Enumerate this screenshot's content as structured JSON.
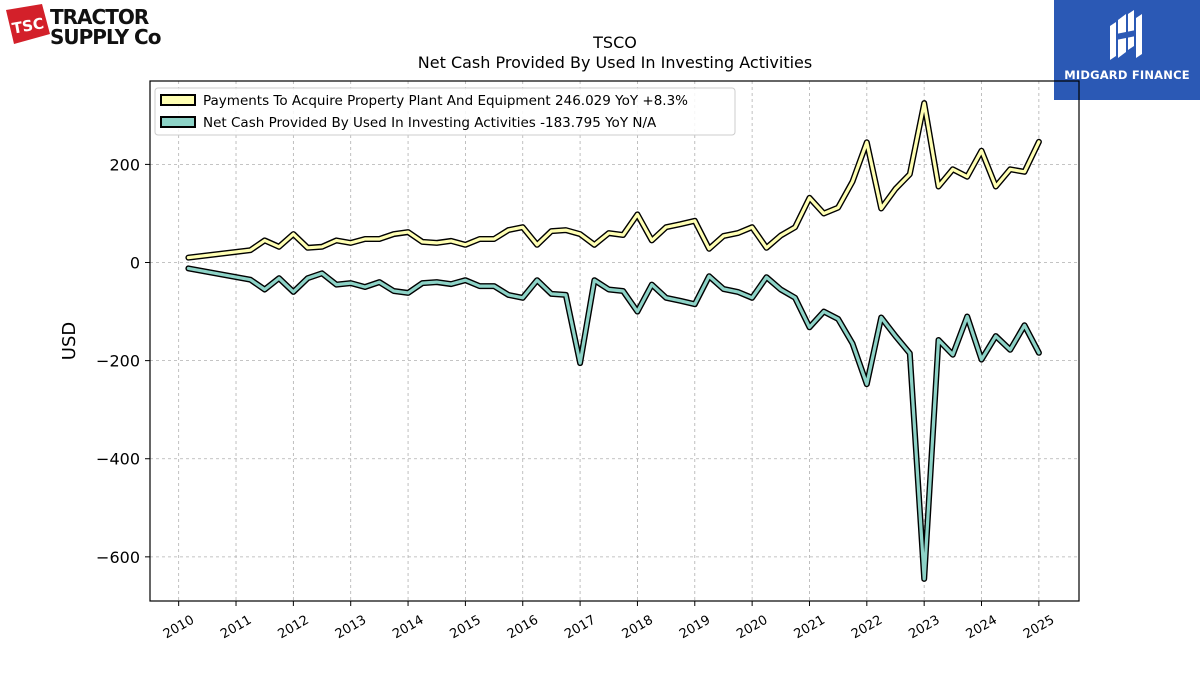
{
  "logos": {
    "left": {
      "line1": "TRACTOR",
      "line2": "SUPPLY Co",
      "mark": "TSC"
    },
    "right": {
      "brand": "MIDGARD FINANCE"
    }
  },
  "colors": {
    "series_capex": "#ffffb3",
    "series_investing": "#8dd3c7",
    "outline": "#000000",
    "grid": "#b0b0b0",
    "brand_blue": "#2b59b5",
    "tsc_red": "#d3202a"
  },
  "chart_data": {
    "type": "line",
    "title": "TSCO",
    "subtitle": "Net Cash Provided By Used In Investing Activities",
    "xlabel": "",
    "ylabel": "USD",
    "xlim": [
      2009.5,
      2025.7
    ],
    "ylim": [
      -690,
      370
    ],
    "yticks": [
      -600,
      -400,
      -200,
      0,
      200
    ],
    "ytick_labels": [
      "−600",
      "−400",
      "−200",
      "0",
      "200"
    ],
    "xticks": [
      2010,
      2011,
      2012,
      2013,
      2014,
      2015,
      2016,
      2017,
      2018,
      2019,
      2020,
      2021,
      2022,
      2023,
      2024,
      2025
    ],
    "xtick_labels": [
      "2010",
      "2011",
      "2012",
      "2013",
      "2014",
      "2015",
      "2016",
      "2017",
      "2018",
      "2019",
      "2020",
      "2021",
      "2022",
      "2023",
      "2024",
      "2025"
    ],
    "grid": true,
    "legend_position": "top-left",
    "series": [
      {
        "name": "Payments To Acquire Property Plant And Equipment",
        "legend_label": "Payments To Acquire Property Plant And Equipment  246.029 YoY +8.3%",
        "points": [
          [
            2010.17,
            10
          ],
          [
            2011.25,
            25
          ],
          [
            2011.5,
            45
          ],
          [
            2011.75,
            32
          ],
          [
            2012.0,
            58
          ],
          [
            2012.25,
            30
          ],
          [
            2012.5,
            32
          ],
          [
            2012.75,
            45
          ],
          [
            2013.0,
            40
          ],
          [
            2013.25,
            48
          ],
          [
            2013.5,
            48
          ],
          [
            2013.75,
            58
          ],
          [
            2014.0,
            62
          ],
          [
            2014.25,
            42
          ],
          [
            2014.5,
            40
          ],
          [
            2014.75,
            44
          ],
          [
            2015.0,
            36
          ],
          [
            2015.25,
            48
          ],
          [
            2015.5,
            48
          ],
          [
            2015.75,
            66
          ],
          [
            2016.0,
            72
          ],
          [
            2016.25,
            36
          ],
          [
            2016.5,
            64
          ],
          [
            2016.75,
            66
          ],
          [
            2017.0,
            58
          ],
          [
            2017.25,
            36
          ],
          [
            2017.5,
            60
          ],
          [
            2017.75,
            56
          ],
          [
            2018.0,
            98
          ],
          [
            2018.25,
            45
          ],
          [
            2018.5,
            72
          ],
          [
            2018.75,
            78
          ],
          [
            2019.0,
            85
          ],
          [
            2019.25,
            28
          ],
          [
            2019.5,
            54
          ],
          [
            2019.75,
            60
          ],
          [
            2020.0,
            72
          ],
          [
            2020.25,
            30
          ],
          [
            2020.5,
            55
          ],
          [
            2020.75,
            72
          ],
          [
            2021.0,
            132
          ],
          [
            2021.25,
            100
          ],
          [
            2021.5,
            112
          ],
          [
            2021.75,
            165
          ],
          [
            2022.0,
            245
          ],
          [
            2022.25,
            110
          ],
          [
            2022.5,
            150
          ],
          [
            2022.75,
            180
          ],
          [
            2023.0,
            325
          ],
          [
            2023.25,
            155
          ],
          [
            2023.5,
            190
          ],
          [
            2023.75,
            175
          ],
          [
            2024.0,
            228
          ],
          [
            2024.25,
            155
          ],
          [
            2024.5,
            190
          ],
          [
            2024.75,
            185
          ],
          [
            2025.0,
            246
          ]
        ]
      },
      {
        "name": "Net Cash Provided By Used In Investing Activities",
        "legend_label": "Net Cash Provided By Used In Investing Activities  -183.795 YoY N/A",
        "points": [
          [
            2010.17,
            -12
          ],
          [
            2011.25,
            -35
          ],
          [
            2011.5,
            -55
          ],
          [
            2011.75,
            -32
          ],
          [
            2012.0,
            -60
          ],
          [
            2012.25,
            -32
          ],
          [
            2012.5,
            -22
          ],
          [
            2012.75,
            -45
          ],
          [
            2013.0,
            -42
          ],
          [
            2013.25,
            -50
          ],
          [
            2013.5,
            -40
          ],
          [
            2013.75,
            -58
          ],
          [
            2014.0,
            -62
          ],
          [
            2014.25,
            -42
          ],
          [
            2014.5,
            -40
          ],
          [
            2014.75,
            -44
          ],
          [
            2015.0,
            -36
          ],
          [
            2015.25,
            -48
          ],
          [
            2015.5,
            -48
          ],
          [
            2015.75,
            -66
          ],
          [
            2016.0,
            -72
          ],
          [
            2016.25,
            -36
          ],
          [
            2016.5,
            -64
          ],
          [
            2016.75,
            -66
          ],
          [
            2017.0,
            -205
          ],
          [
            2017.25,
            -36
          ],
          [
            2017.5,
            -55
          ],
          [
            2017.75,
            -58
          ],
          [
            2018.0,
            -100
          ],
          [
            2018.25,
            -45
          ],
          [
            2018.5,
            -72
          ],
          [
            2018.75,
            -78
          ],
          [
            2019.0,
            -85
          ],
          [
            2019.25,
            -28
          ],
          [
            2019.5,
            -54
          ],
          [
            2019.75,
            -60
          ],
          [
            2020.0,
            -72
          ],
          [
            2020.25,
            -30
          ],
          [
            2020.5,
            -55
          ],
          [
            2020.75,
            -72
          ],
          [
            2021.0,
            -132
          ],
          [
            2021.25,
            -100
          ],
          [
            2021.5,
            -115
          ],
          [
            2021.75,
            -165
          ],
          [
            2022.0,
            -248
          ],
          [
            2022.25,
            -112
          ],
          [
            2022.5,
            -150
          ],
          [
            2022.75,
            -185
          ],
          [
            2023.0,
            -645
          ],
          [
            2023.25,
            -158
          ],
          [
            2023.5,
            -188
          ],
          [
            2023.75,
            -110
          ],
          [
            2024.0,
            -198
          ],
          [
            2024.25,
            -150
          ],
          [
            2024.5,
            -178
          ],
          [
            2024.75,
            -128
          ],
          [
            2025.0,
            -184
          ]
        ]
      }
    ]
  }
}
